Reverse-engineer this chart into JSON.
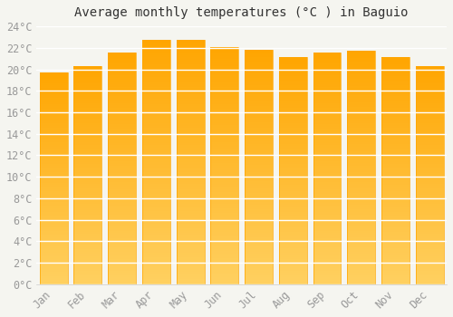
{
  "months": [
    "Jan",
    "Feb",
    "Mar",
    "Apr",
    "May",
    "Jun",
    "Jul",
    "Aug",
    "Sep",
    "Oct",
    "Nov",
    "Dec"
  ],
  "values": [
    19.7,
    20.3,
    21.6,
    22.7,
    22.7,
    22.1,
    21.8,
    21.1,
    21.6,
    21.7,
    21.1,
    20.3
  ],
  "bar_color_top": "#FFA500",
  "bar_color_bottom": "#FFD060",
  "background_color": "#F5F5F0",
  "grid_color": "#FFFFFF",
  "title": "Average monthly temperatures (°C ) in Baguio",
  "ylim": [
    0,
    24
  ],
  "ytick_step": 2,
  "title_fontsize": 10,
  "tick_fontsize": 8.5,
  "axis_label_color": "#999999"
}
